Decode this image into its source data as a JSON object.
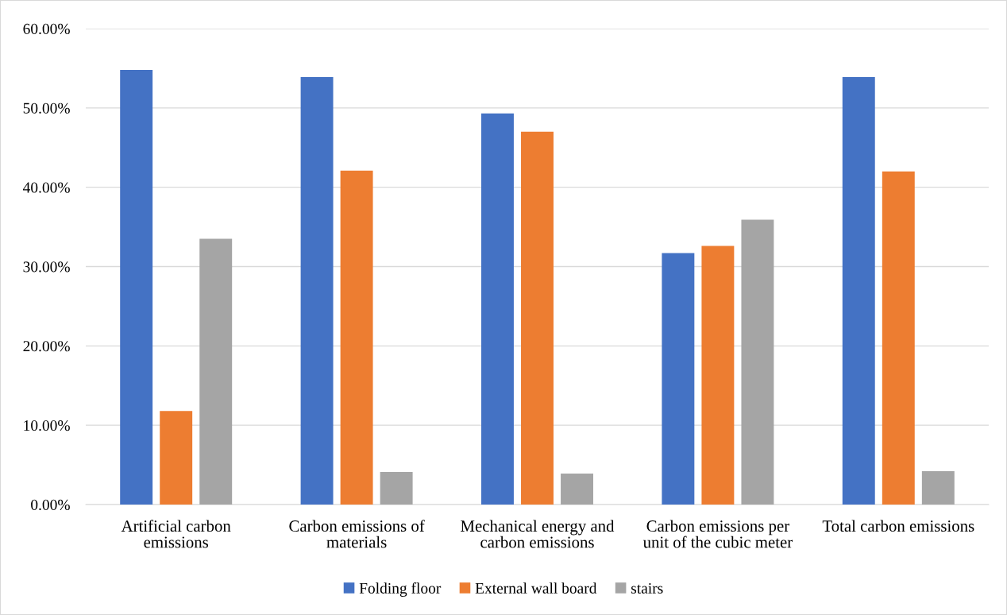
{
  "chart_data": {
    "type": "bar",
    "categories": [
      "Artificial carbon emissions",
      "Carbon emissions of materials",
      "Mechanical energy and carbon emissions",
      "Carbon emissions per unit of the cubic meter",
      "Total carbon emissions"
    ],
    "series": [
      {
        "name": "Folding floor",
        "color": "#4472c4",
        "values": [
          54.8,
          53.9,
          49.3,
          31.7,
          53.9
        ]
      },
      {
        "name": "External wall board",
        "color": "#ed7d31",
        "values": [
          11.8,
          42.1,
          47.0,
          32.6,
          42.0
        ]
      },
      {
        "name": "stairs",
        "color": "#a5a5a5",
        "values": [
          33.5,
          4.1,
          3.9,
          35.9,
          4.2
        ]
      }
    ],
    "ylim": [
      0,
      60
    ],
    "yticks": [
      {
        "value": 0,
        "label": "0.00%"
      },
      {
        "value": 10,
        "label": "10.00%"
      },
      {
        "value": 20,
        "label": "20.00%"
      },
      {
        "value": 30,
        "label": "30.00%"
      },
      {
        "value": 40,
        "label": "40.00%"
      },
      {
        "value": 50,
        "label": "50.00%"
      },
      {
        "value": 60,
        "label": "60.00%"
      }
    ],
    "grid": "y",
    "legend": "bottom"
  }
}
